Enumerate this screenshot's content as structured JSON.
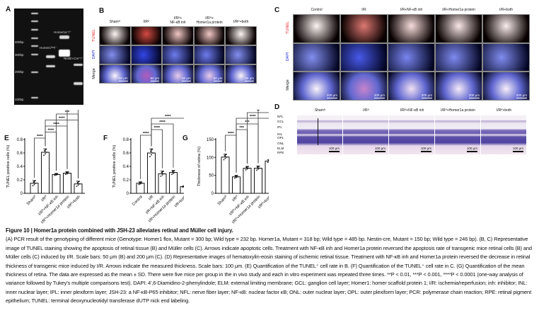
{
  "panels": {
    "a": "A",
    "b": "B",
    "c": "C",
    "d": "D",
    "e": "E",
    "f": "F",
    "g": "G"
  },
  "gel": {
    "ladder": [
      "400bp",
      "300bp",
      "200bp",
      "100bp"
    ],
    "bands": [
      "Homer1a⁺/⁺",
      "Homer1ᶠˡᵒˣ/⁻",
      "Nestin-Cre⁺/⁺"
    ]
  },
  "panel_b": {
    "columns": [
      "Shamᶠᶠ",
      "I/Rᶠᶠ",
      "I/Rᶠᶠ+\nNF-κB inh",
      "I/Rᶠᶠ+\nHomer1a protein",
      "I/Rᶠᶠ+both"
    ],
    "rows": [
      "TUNEL",
      "DAPI",
      "Merge"
    ],
    "scale": "50 μm"
  },
  "panel_c": {
    "columns": [
      "Control",
      "I/R",
      "I/R+NF-κB inh",
      "I/R+Homer1a protein",
      "I/R+both"
    ],
    "rows": [
      "TUNEL",
      "DAPI",
      "Merge"
    ],
    "scale": "200 μm"
  },
  "panel_d": {
    "columns": [
      "Shamᶠᶠ",
      "I/Rᶠᶠ",
      "I/Rᶠᶠ+NF-κB inh",
      "I/Rᶠᶠ+Homer1a protein",
      "I/Rᶠᶠ+both"
    ],
    "layers": [
      "NFL",
      "GCL",
      "IPL",
      "INL",
      "OPL",
      "ONL",
      "ELM",
      "RPE"
    ],
    "scale": "100 μm"
  },
  "colors": {
    "tunel": "#e8262b",
    "dapi": "#2030d8"
  },
  "chart_data": [
    {
      "type": "bar",
      "panel": "E",
      "ylabel": "TUNEL positive cells (%)",
      "ylim": [
        0,
        0.8
      ],
      "yticks": [
        0,
        0.2,
        0.4,
        0.6,
        0.8
      ],
      "categories": [
        "Shamᶠᶠ",
        "I/Rᶠᶠ",
        "I/Rᶠᶠ+NF-κB inh",
        "I/Rᶠᶠ+Homer1a protein",
        "I/Rᶠᶠ+both"
      ],
      "values": [
        0.15,
        0.61,
        0.28,
        0.3,
        0.14
      ],
      "errors": [
        0.04,
        0.05,
        0.015,
        0.02,
        0.04
      ],
      "significance": [
        {
          "a": 0,
          "b": 1,
          "label": "****"
        },
        {
          "a": 1,
          "b": 2,
          "label": "****"
        },
        {
          "a": 1,
          "b": 3,
          "label": "****"
        },
        {
          "a": 1,
          "b": 4,
          "label": "****"
        },
        {
          "a": 2,
          "b": 4,
          "label": "***"
        },
        {
          "a": 3,
          "b": 4,
          "label": "****"
        }
      ]
    },
    {
      "type": "bar",
      "panel": "F",
      "ylabel": "TUNEL positive cells (%)",
      "ylim": [
        0,
        0.8
      ],
      "yticks": [
        0,
        0.2,
        0.4,
        0.6,
        0.8
      ],
      "categories": [
        "Control",
        "I/R",
        "I/R+NF-κB inh",
        "I/R+Homer1a protein",
        "I/R+both"
      ],
      "values": [
        0.15,
        0.6,
        0.29,
        0.31,
        0.1
      ],
      "errors": [
        0.02,
        0.06,
        0.04,
        0.03,
        0.01
      ],
      "significance": [
        {
          "a": 0,
          "b": 1,
          "label": "****"
        },
        {
          "a": 1,
          "b": 2,
          "label": "****"
        },
        {
          "a": 1,
          "b": 3,
          "label": "****"
        },
        {
          "a": 1,
          "b": 4,
          "label": "****"
        }
      ]
    },
    {
      "type": "bar",
      "panel": "G",
      "ylabel": "Thickness of retina (%)",
      "ylim": [
        0,
        150
      ],
      "yticks": [
        0,
        50,
        100,
        150
      ],
      "categories": [
        "Shamᶠᶠ",
        "I/Rᶠᶠ",
        "I/Rᶠᶠ+NF-κB inh",
        "I/Rᶠᶠ+Homer1a protein",
        "I/Rᶠᶠ+both"
      ],
      "values": [
        101,
        46,
        70,
        70,
        90
      ],
      "errors": [
        8,
        4,
        5,
        6,
        4
      ],
      "significance": [
        {
          "a": 0,
          "b": 1,
          "label": "****"
        },
        {
          "a": 1,
          "b": 2,
          "label": "***"
        },
        {
          "a": 1,
          "b": 3,
          "label": "***"
        },
        {
          "a": 1,
          "b": 4,
          "label": "****"
        },
        {
          "a": 2,
          "b": 4,
          "label": "**"
        },
        {
          "a": 3,
          "b": 4,
          "label": "**"
        }
      ]
    }
  ],
  "caption": {
    "title": "Figure 10  |  Homer1a protein combined with JSH-23 alleviates retinal and Müller cell injury.",
    "body": "(A) PCR result of the genotyping of different mice (Genotype: Homer1 flox, Mutant = 300 bp; Wild type = 232 bp. Homer1a, Mutant = 318 bp; Wild type = 485 bp. Nestin-cre, Mutant = 150 bp; Wild type = 246 bp). (B, C) Representative image of TUNEL staining showing the apoptosis of retinal tissue (B) and Müller cells (C). Arrows indicate apoptotic cells. Treatment with NF-κB inh and Homer1a protein reversed the apoptosis rate of transgenic mice retinal cells (B) and Müller cells (C) induced by I/R. Scale bars: 50 μm (B) and 200 μm (C). (D) Representative images of hematoxylin-eosin staining of ischemic retinal tissue. Treatment with NF-κB inh and Homer1a protein reversed the decrease in retinal thickness of transgenic mice induced by I/R. Arrows indicate the measured thickness. Scale bars: 100 μm. (E) Quantification of the TUNEL⁺ cell rate in B. (F) Quantification of the TUNEL⁺ cell rate in C. (G) Quantification of the mean thickness of retina. The data are expressed as the mean ± SD. There were five mice per group in the in vivo study and each in vitro experiment was repeated three times. **P < 0.01, ***P < 0.001, ****P < 0.0001 (one-way analysis of variance followed by Tukey’s multiple comparisons test). DAPI: 4′,6-Diamidino-2-phenylindole; ELM: external limiting membrane; GCL: ganglion cell layer; Homer1: homer scaffold protein 1; I/R: ischemia/reperfusion; inh: inhibitor; INL: inner nuclear layer; IPL: inner plexiform layer; JSH-23: a NF-κB-P65 inhibitor; NFL: nerve fiber layer; NF-κB: nuclear factor κB; ONL: outer nuclear layer; OPL: outer plexiform layer; PCR: polymerase chain reaction; RPE: retinal pigment epithelium; TUNEL: terminal deoxynucleotidyl transferase dUTP nick end labeling."
  }
}
